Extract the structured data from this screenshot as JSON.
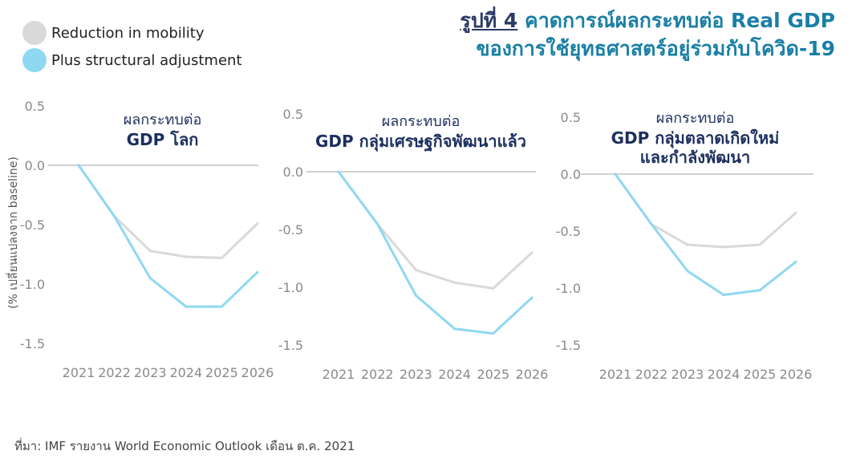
{
  "legend": {
    "items": [
      {
        "label": "Reduction in mobility",
        "color": "#d9d9d9"
      },
      {
        "label": "Plus structural adjustment",
        "color": "#8fd8f2"
      }
    ]
  },
  "figure_title": {
    "label": "รูปที่ 4",
    "line1": "คาดการณ์ผลกระทบต่อ Real GDP",
    "line2": "ของการใช้ยุทธศาสตร์อยู่ร่วมกับโควิด-19"
  },
  "ylabel": "(% เปลี่ยนแปลงจาก baseline)",
  "source": "ที่มา: IMF รายงาน World Economic Outlook  เดือน ต.ค. 2021",
  "colors": {
    "series_gray": "#d9d9d9",
    "series_blue": "#8fd8f2",
    "axis_line": "#d0d0d0",
    "tick": "#8a8a8a",
    "panel_title": "#1c2f5e"
  },
  "chart_data": [
    {
      "type": "line",
      "title_lines": [
        "ผลกระทบต่อ",
        "GDP โลก"
      ],
      "categories": [
        "2021",
        "2022",
        "2023",
        "2024",
        "2025",
        "2026"
      ],
      "ylim": [
        -1.5,
        0.5
      ],
      "yticks": [
        "0.5",
        "0.0",
        "-0.5",
        "-1.0",
        "-1.5"
      ],
      "series": [
        {
          "name": "Reduction in mobility",
          "values": [
            0.0,
            -0.43,
            -0.72,
            -0.77,
            -0.78,
            -0.49
          ]
        },
        {
          "name": "Plus structural adjustment",
          "values": [
            0.0,
            -0.43,
            -0.95,
            -1.19,
            -1.19,
            -0.9
          ]
        }
      ]
    },
    {
      "type": "line",
      "title_lines": [
        "ผลกระทบต่อ",
        "GDP กลุ่มเศรษฐกิจพัฒนาแล้ว"
      ],
      "categories": [
        "2021",
        "2022",
        "2023",
        "2024",
        "2025",
        "2026"
      ],
      "ylim": [
        -1.5,
        0.5
      ],
      "yticks": [
        "0.5",
        "0.0",
        "-0.5",
        "-1.0",
        "-1.5"
      ],
      "series": [
        {
          "name": "Reduction in mobility",
          "values": [
            0.0,
            -0.45,
            -0.85,
            -0.96,
            -1.01,
            -0.7
          ]
        },
        {
          "name": "Plus structural adjustment",
          "values": [
            0.0,
            -0.45,
            -1.07,
            -1.36,
            -1.4,
            -1.09
          ]
        }
      ]
    },
    {
      "type": "line",
      "title_lines": [
        "ผลกระทบต่อ",
        "GDP กลุ่มตลาดเกิดใหม่",
        "และกำลังพัฒนา"
      ],
      "categories": [
        "2021",
        "2022",
        "2023",
        "2024",
        "2025",
        "2026"
      ],
      "ylim": [
        -1.5,
        0.5
      ],
      "yticks": [
        "0.5",
        "0.0",
        "-0.5",
        "-1.0",
        "-1.5"
      ],
      "series": [
        {
          "name": "Reduction in mobility",
          "values": [
            0.0,
            -0.44,
            -0.62,
            -0.64,
            -0.62,
            -0.34
          ]
        },
        {
          "name": "Plus structural adjustment",
          "values": [
            0.0,
            -0.44,
            -0.85,
            -1.06,
            -1.02,
            -0.77
          ]
        }
      ]
    }
  ]
}
